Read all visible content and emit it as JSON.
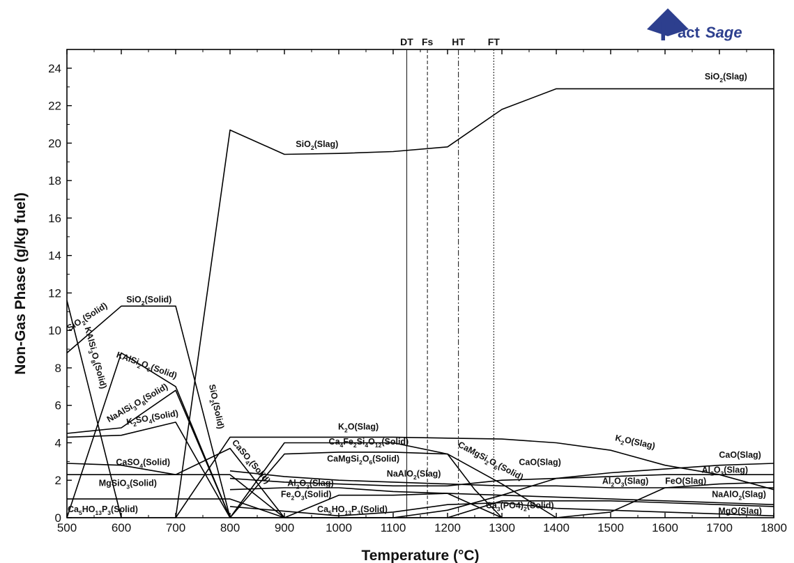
{
  "logo": {
    "text_big": "F",
    "text_rest": "act",
    "text_sage": "Sage",
    "color": "#2d3f8e"
  },
  "chart_data": {
    "type": "line",
    "xlabel": "Temperature (°C)",
    "ylabel": "Non-Gas Phase (g/kg fuel)",
    "xlim": [
      500,
      1800
    ],
    "ylim": [
      0,
      25
    ],
    "xticks": [
      500,
      600,
      700,
      800,
      900,
      1000,
      1100,
      1200,
      1300,
      1400,
      1500,
      1600,
      1700,
      1800
    ],
    "yticks": [
      0,
      2,
      4,
      6,
      8,
      10,
      12,
      14,
      16,
      18,
      20,
      22,
      24
    ],
    "grid": false,
    "legend": "none",
    "vlines": [
      {
        "label": "DT",
        "x": 1125,
        "style": "solid"
      },
      {
        "label": "Fs",
        "x": 1163,
        "style": "dashed"
      },
      {
        "label": "HT",
        "x": 1220,
        "style": "dashdot"
      },
      {
        "label": "FT",
        "x": 1285,
        "style": "dotted"
      }
    ],
    "series": [
      {
        "x": [
          500,
          600,
          700,
          800,
          900,
          1000,
          1100,
          1200,
          1300,
          1400,
          1500,
          1600,
          1700,
          1800
        ],
        "y": [
          0,
          0,
          0,
          20.7,
          19.4,
          19.45,
          19.55,
          19.8,
          21.8,
          22.9,
          22.9,
          22.9,
          22.9,
          22.9
        ]
      },
      {
        "x": [
          500,
          600,
          700,
          800
        ],
        "y": [
          8.8,
          11.3,
          11.3,
          0
        ]
      },
      {
        "x": [
          500,
          600
        ],
        "y": [
          11.6,
          0
        ]
      },
      {
        "x": [
          500,
          600,
          700,
          800
        ],
        "y": [
          0,
          8.8,
          7.0,
          0
        ]
      },
      {
        "x": [
          500,
          600,
          700,
          800
        ],
        "y": [
          4.5,
          4.8,
          6.8,
          0
        ]
      },
      {
        "x": [
          500,
          600,
          700,
          800
        ],
        "y": [
          4.3,
          4.4,
          5.1,
          0
        ]
      },
      {
        "x": [
          700,
          800,
          900,
          1000,
          1100,
          1200,
          1300,
          1400,
          1500,
          1600,
          1700,
          1800
        ],
        "y": [
          0,
          4.3,
          4.3,
          4.3,
          4.3,
          4.25,
          4.2,
          4.0,
          3.6,
          2.8,
          2.3,
          1.5
        ]
      },
      {
        "x": [
          500,
          600,
          700,
          800,
          900
        ],
        "y": [
          2.9,
          2.8,
          2.3,
          3.7,
          0
        ]
      },
      {
        "x": [
          500,
          600,
          700,
          800,
          900
        ],
        "y": [
          2.3,
          2.3,
          2.3,
          2.3,
          0
        ]
      },
      {
        "x": [
          500,
          600,
          700,
          800,
          900
        ],
        "y": [
          1.0,
          1.0,
          1.0,
          1.0,
          0
        ]
      },
      {
        "x": [
          800,
          900,
          1000,
          1100,
          1200,
          1250,
          1300
        ],
        "y": [
          0,
          4.0,
          4.0,
          4.0,
          3.4,
          1.5,
          0
        ]
      },
      {
        "x": [
          800,
          900,
          1000,
          1100,
          1200,
          1300,
          1400
        ],
        "y": [
          0,
          3.4,
          3.5,
          3.5,
          3.4,
          1.8,
          0
        ]
      },
      {
        "x": [
          800,
          900,
          1000,
          1100,
          1200,
          1300,
          1400,
          1500,
          1600,
          1700,
          1800
        ],
        "y": [
          2.5,
          2.2,
          2.0,
          1.9,
          1.8,
          1.7,
          1.7,
          1.6,
          1.6,
          1.6,
          1.6
        ]
      },
      {
        "x": [
          800,
          900,
          1000,
          1100,
          1200,
          1300,
          1400,
          1500,
          1600,
          1700,
          1800
        ],
        "y": [
          2.1,
          1.9,
          1.8,
          1.7,
          1.7,
          2.0,
          2.1,
          2.2,
          2.3,
          2.3,
          2.3
        ]
      },
      {
        "x": [
          800,
          900,
          1000,
          1100,
          1200,
          1300,
          1400,
          1500,
          1600,
          1700,
          1800
        ],
        "y": [
          1.5,
          1.6,
          1.6,
          1.4,
          1.3,
          1.2,
          1.1,
          1.0,
          0.9,
          0.8,
          0.7
        ]
      },
      {
        "x": [
          900,
          1000,
          1100,
          1200,
          1300,
          1400,
          1500,
          1600,
          1700,
          1800
        ],
        "y": [
          0,
          0,
          0,
          0.4,
          1.2,
          2.1,
          2.4,
          2.6,
          2.8,
          2.9
        ]
      },
      {
        "x": [
          800,
          900,
          1000,
          1100,
          1200,
          1300,
          1400,
          1500,
          1600,
          1700,
          1800
        ],
        "y": [
          0,
          0,
          0,
          0,
          0,
          0,
          0,
          0.3,
          1.6,
          1.8,
          1.9
        ]
      },
      {
        "x": [
          1200,
          1300,
          1400,
          1500,
          1600,
          1700,
          1800
        ],
        "y": [
          0,
          0.9,
          0.9,
          0.9,
          0.8,
          0.7,
          0.6
        ]
      },
      {
        "x": [
          800,
          1000,
          1100,
          1200,
          1300,
          1400,
          1500,
          1600,
          1700,
          1800
        ],
        "y": [
          0.6,
          0.1,
          0.3,
          0.7,
          0.8,
          0.5,
          0.4,
          0.3,
          0.2,
          0.1
        ]
      },
      {
        "x": [
          900,
          1000,
          1100,
          1200,
          1300
        ],
        "y": [
          0,
          1.2,
          1.2,
          1.3,
          0
        ]
      }
    ],
    "labels": [
      {
        "parts": [
          [
            "SiO",
            0
          ],
          [
            "2",
            -1
          ],
          [
            "(Slag)",
            0
          ]
        ],
        "x": 1712,
        "y": 23.4,
        "rot": 0
      },
      {
        "parts": [
          [
            "SiO",
            0
          ],
          [
            "2",
            -1
          ],
          [
            "(Slag)",
            0
          ]
        ],
        "x": 960,
        "y": 19.8,
        "rot": 0
      },
      {
        "parts": [
          [
            "SiO",
            0
          ],
          [
            "2",
            -1
          ],
          [
            "(Solid)",
            0
          ]
        ],
        "x": 651,
        "y": 11.5,
        "rot": 0
      },
      {
        "parts": [
          [
            "SiO",
            0
          ],
          [
            "2",
            -1
          ],
          [
            "(Solid)",
            0
          ]
        ],
        "x": 540,
        "y": 10.6,
        "rot": -32
      },
      {
        "parts": [
          [
            "KAlSi",
            0
          ],
          [
            "3",
            -1
          ],
          [
            "O",
            0
          ],
          [
            "8",
            -1
          ],
          [
            "(Solid)",
            0
          ]
        ],
        "x": 548,
        "y": 8.5,
        "rot": 75
      },
      {
        "parts": [
          [
            "KAlSi",
            0
          ],
          [
            "2",
            -1
          ],
          [
            "O",
            0
          ],
          [
            "6",
            -1
          ],
          [
            "(Solid)",
            0
          ]
        ],
        "x": 645,
        "y": 8.0,
        "rot": 20
      },
      {
        "parts": [
          [
            "NaAlSi",
            0
          ],
          [
            "3",
            -1
          ],
          [
            "O",
            0
          ],
          [
            "8",
            -1
          ],
          [
            "(Solid)",
            0
          ]
        ],
        "x": 632,
        "y": 6.0,
        "rot": -30
      },
      {
        "parts": [
          [
            "K",
            0
          ],
          [
            "2",
            -1
          ],
          [
            "SO",
            0
          ],
          [
            "4",
            -1
          ],
          [
            "(Solid)",
            0
          ]
        ],
        "x": 658,
        "y": 5.2,
        "rot": -10
      },
      {
        "parts": [
          [
            "SiO",
            0
          ],
          [
            "2",
            -1
          ],
          [
            "(Solid)",
            0
          ]
        ],
        "x": 770,
        "y": 5.9,
        "rot": 78
      },
      {
        "parts": [
          [
            "K",
            0
          ],
          [
            "2",
            -1
          ],
          [
            "O(Slag)",
            0
          ]
        ],
        "x": 1036,
        "y": 4.7,
        "rot": 0
      },
      {
        "parts": [
          [
            "K",
            0
          ],
          [
            "2",
            -1
          ],
          [
            "O(Slag)",
            0
          ]
        ],
        "x": 1544,
        "y": 3.9,
        "rot": 12
      },
      {
        "parts": [
          [
            "CaO(Slag)",
            0
          ]
        ],
        "x": 1738,
        "y": 3.2,
        "rot": 0
      },
      {
        "parts": [
          [
            "CaO(Slag)",
            0
          ]
        ],
        "x": 1370,
        "y": 2.8,
        "rot": 0
      },
      {
        "parts": [
          [
            "CaSO",
            0
          ],
          [
            "4",
            -1
          ],
          [
            "(Solid)",
            0
          ]
        ],
        "x": 835,
        "y": 2.9,
        "rot": 50
      },
      {
        "parts": [
          [
            "Ca",
            0
          ],
          [
            "4",
            -1
          ],
          [
            "Fe",
            0
          ],
          [
            "2",
            -1
          ],
          [
            "Si",
            0
          ],
          [
            "4",
            -1
          ],
          [
            "O",
            0
          ],
          [
            "12",
            -1
          ],
          [
            "(Solid)",
            0
          ]
        ],
        "x": 1055,
        "y": 3.9,
        "rot": 0
      },
      {
        "parts": [
          [
            "CaMgSi",
            0
          ],
          [
            "2",
            -1
          ],
          [
            "O",
            0
          ],
          [
            "6",
            -1
          ],
          [
            "(Solid)",
            0
          ]
        ],
        "x": 1045,
        "y": 3.0,
        "rot": 0
      },
      {
        "parts": [
          [
            "CaMgSi",
            0
          ],
          [
            "2",
            -1
          ],
          [
            "O",
            0
          ],
          [
            "6",
            -1
          ],
          [
            "(Solid)",
            0
          ]
        ],
        "x": 1277,
        "y": 2.9,
        "rot": 28
      },
      {
        "parts": [
          [
            "CaSO",
            0
          ],
          [
            "4",
            -1
          ],
          [
            "(Solid)",
            0
          ]
        ],
        "x": 640,
        "y": 2.8,
        "rot": 0
      },
      {
        "parts": [
          [
            "NaAlO",
            0
          ],
          [
            "2",
            -1
          ],
          [
            "(Slag)",
            0
          ]
        ],
        "x": 1138,
        "y": 2.2,
        "rot": 0
      },
      {
        "parts": [
          [
            "Al",
            0
          ],
          [
            "2",
            -1
          ],
          [
            "O",
            0
          ],
          [
            "3",
            -1
          ],
          [
            "(Slag)",
            0
          ]
        ],
        "x": 1710,
        "y": 2.4,
        "rot": 0
      },
      {
        "parts": [
          [
            "Al",
            0
          ],
          [
            "2",
            -1
          ],
          [
            "O",
            0
          ],
          [
            "3",
            -1
          ],
          [
            "(Slag)",
            0
          ]
        ],
        "x": 1527,
        "y": 1.8,
        "rot": 0
      },
      {
        "parts": [
          [
            "Al",
            0
          ],
          [
            "2",
            -1
          ],
          [
            "O",
            0
          ],
          [
            "3",
            -1
          ],
          [
            "(Slag)",
            0
          ]
        ],
        "x": 948,
        "y": 1.7,
        "rot": 0
      },
      {
        "parts": [
          [
            "FeO(Slag)",
            0
          ]
        ],
        "x": 1638,
        "y": 1.8,
        "rot": 0
      },
      {
        "parts": [
          [
            "MgSiO",
            0
          ],
          [
            "3",
            -1
          ],
          [
            "(Solid)",
            0
          ]
        ],
        "x": 612,
        "y": 1.7,
        "rot": 0
      },
      {
        "parts": [
          [
            "Fe",
            0
          ],
          [
            "2",
            -1
          ],
          [
            "O",
            0
          ],
          [
            "3",
            -1
          ],
          [
            "(Solid)",
            0
          ]
        ],
        "x": 940,
        "y": 1.1,
        "rot": 0
      },
      {
        "parts": [
          [
            "NaAlO",
            0
          ],
          [
            "2",
            -1
          ],
          [
            "(Slag)",
            0
          ]
        ],
        "x": 1736,
        "y": 1.1,
        "rot": 0
      },
      {
        "parts": [
          [
            "Ca",
            0
          ],
          [
            "5",
            -1
          ],
          [
            "HO",
            0
          ],
          [
            "13",
            -1
          ],
          [
            "P",
            0
          ],
          [
            "3",
            -1
          ],
          [
            "(Solid)",
            0
          ]
        ],
        "x": 566,
        "y": 0.3,
        "rot": 0
      },
      {
        "parts": [
          [
            "Ca",
            0
          ],
          [
            "5",
            -1
          ],
          [
            "HO",
            0
          ],
          [
            "13",
            -1
          ],
          [
            "P",
            0
          ],
          [
            "3",
            -1
          ],
          [
            "(Solid)",
            0
          ]
        ],
        "x": 1025,
        "y": 0.3,
        "rot": 0
      },
      {
        "parts": [
          [
            "Ca",
            0
          ],
          [
            "3",
            -1
          ],
          [
            "(PO4)",
            0
          ],
          [
            "2",
            -1
          ],
          [
            "(Solid)",
            0
          ]
        ],
        "x": 1333,
        "y": 0.5,
        "rot": 0
      },
      {
        "parts": [
          [
            "MgO(Slag)",
            0
          ]
        ],
        "x": 1738,
        "y": 0.2,
        "rot": 0
      }
    ]
  }
}
